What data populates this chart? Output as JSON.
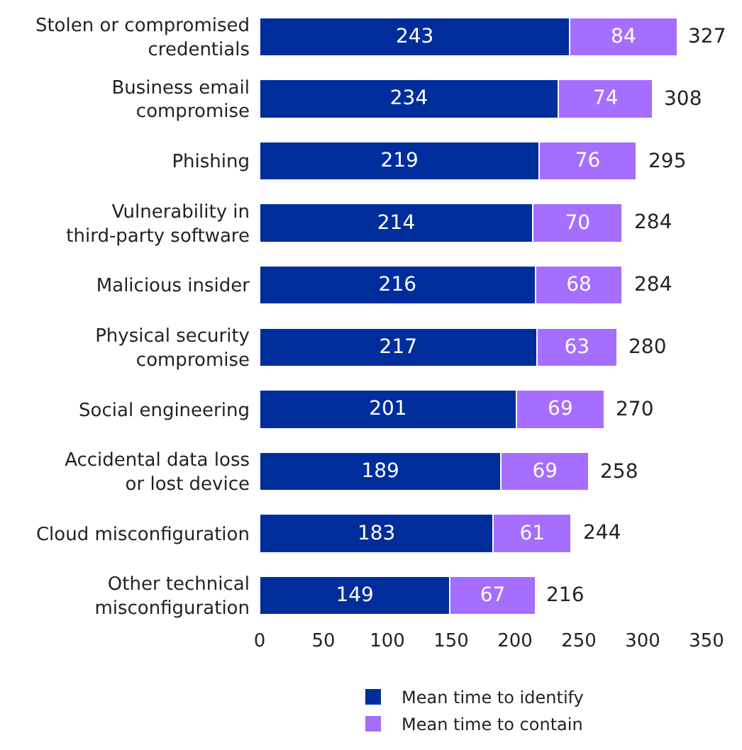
{
  "chart_data": {
    "type": "bar",
    "orientation": "horizontal",
    "stacked": true,
    "data_labels": true,
    "legend": "bottom",
    "categories": [
      "Stolen or compromised\ncredentials",
      "Business email\ncompromise",
      "Phishing",
      "Vulnerability in\nthird-party software",
      "Malicious insider",
      "Physical security\ncompromise",
      "Social engineering",
      "Accidental data loss\nor lost device",
      "Cloud misconfiguration",
      "Other technical\nmisconfiguration"
    ],
    "series": [
      {
        "name": "Mean time to identify",
        "color": "#002d9c",
        "values": [
          243,
          234,
          219,
          214,
          216,
          217,
          201,
          189,
          183,
          149
        ]
      },
      {
        "name": "Mean time to contain",
        "color": "#a56eff",
        "values": [
          84,
          74,
          76,
          70,
          68,
          63,
          69,
          69,
          61,
          67
        ]
      }
    ],
    "totals": [
      "327",
      "308",
      "295",
      "284",
      "284",
      "280",
      "270",
      "258",
      "244",
      "216"
    ],
    "xlim": [
      0,
      350
    ],
    "xticks": [
      0,
      50,
      100,
      150,
      200,
      250,
      300,
      350
    ]
  }
}
